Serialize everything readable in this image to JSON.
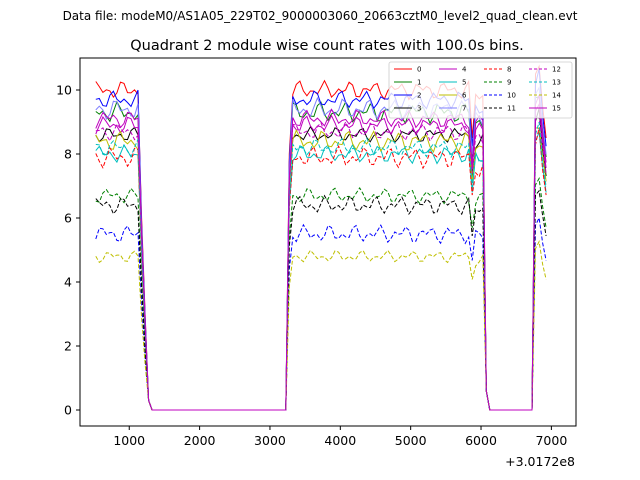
{
  "chart_data": {
    "type": "line",
    "suptitle": "Data file: modeM0/AS1A05_229T02_9000003060_20663cztM0_level2_quad_clean.evt",
    "title": "Quadrant 2 module wise count rates with 100.0s bins.",
    "xlabel": "",
    "ylabel": "",
    "x_offset_label": "+3.0172e8",
    "xlim": [
      300,
      7350
    ],
    "ylim": [
      -0.5,
      11.0
    ],
    "xticks": [
      1000,
      2000,
      3000,
      4000,
      5000,
      6000,
      7000
    ],
    "yticks": [
      0,
      2,
      4,
      6,
      8,
      10
    ],
    "grid": false,
    "legend_position": "top-right",
    "legend_columns": 4,
    "segments": [
      {
        "x_start": 525,
        "x_end": 1125,
        "step": 50
      },
      {
        "x_start": 3225,
        "x_end": 5825,
        "step": 50
      },
      {
        "x_start": 5825,
        "x_end": 6175,
        "step": 50
      },
      {
        "x_start": 6725,
        "x_end": 7025,
        "step": 50
      }
    ],
    "series": [
      {
        "name": "0",
        "color": "#ff0000",
        "dash": "solid",
        "level": 10.0,
        "amp": 0.3,
        "seg3": 9.8
      },
      {
        "name": "1",
        "color": "#008000",
        "dash": "solid",
        "level": 9.3,
        "amp": 0.35,
        "seg3": 9.0
      },
      {
        "name": "2",
        "color": "#0000ff",
        "dash": "solid",
        "level": 9.7,
        "amp": 0.3,
        "seg3": 9.5
      },
      {
        "name": "3",
        "color": "#000000",
        "dash": "solid",
        "level": 8.6,
        "amp": 0.25,
        "seg3": 8.4
      },
      {
        "name": "4",
        "color": "#bf00bf",
        "dash": "solid",
        "level": 8.9,
        "amp": 0.3,
        "seg3": 8.7
      },
      {
        "name": "5",
        "color": "#00bfbf",
        "dash": "solid",
        "level": 8.0,
        "amp": 0.3,
        "seg3": 7.8
      },
      {
        "name": "6",
        "color": "#bfbf00",
        "dash": "solid",
        "level": 8.4,
        "amp": 0.35,
        "seg3": 8.2
      },
      {
        "name": "7",
        "color": "#7f7fff",
        "dash": "solid",
        "level": 9.4,
        "amp": 0.35,
        "seg3": 9.2
      },
      {
        "name": "8",
        "color": "#ff0000",
        "dash": "dashed",
        "level": 7.9,
        "amp": 0.35,
        "seg3": 7.6
      },
      {
        "name": "9",
        "color": "#008000",
        "dash": "dashed",
        "level": 6.7,
        "amp": 0.25,
        "seg3": 6.6
      },
      {
        "name": "10",
        "color": "#0000ff",
        "dash": "dashed",
        "level": 5.5,
        "amp": 0.3,
        "seg3": 5.4
      },
      {
        "name": "11",
        "color": "#000000",
        "dash": "dashed",
        "level": 6.4,
        "amp": 0.3,
        "seg3": 6.2
      },
      {
        "name": "12",
        "color": "#bf00bf",
        "dash": "dashed",
        "level": 8.7,
        "amp": 0.3,
        "seg3": 8.5
      },
      {
        "name": "13",
        "color": "#00bfbf",
        "dash": "dashed",
        "level": 8.2,
        "amp": 0.3,
        "seg3": 8.0
      },
      {
        "name": "14",
        "color": "#bfbf00",
        "dash": "dashed",
        "level": 4.8,
        "amp": 0.2,
        "seg3": 4.7
      },
      {
        "name": "15",
        "color": "#bf00bf",
        "dash": "solid",
        "level": 9.1,
        "amp": 0.3,
        "seg3": 9.0
      }
    ]
  }
}
